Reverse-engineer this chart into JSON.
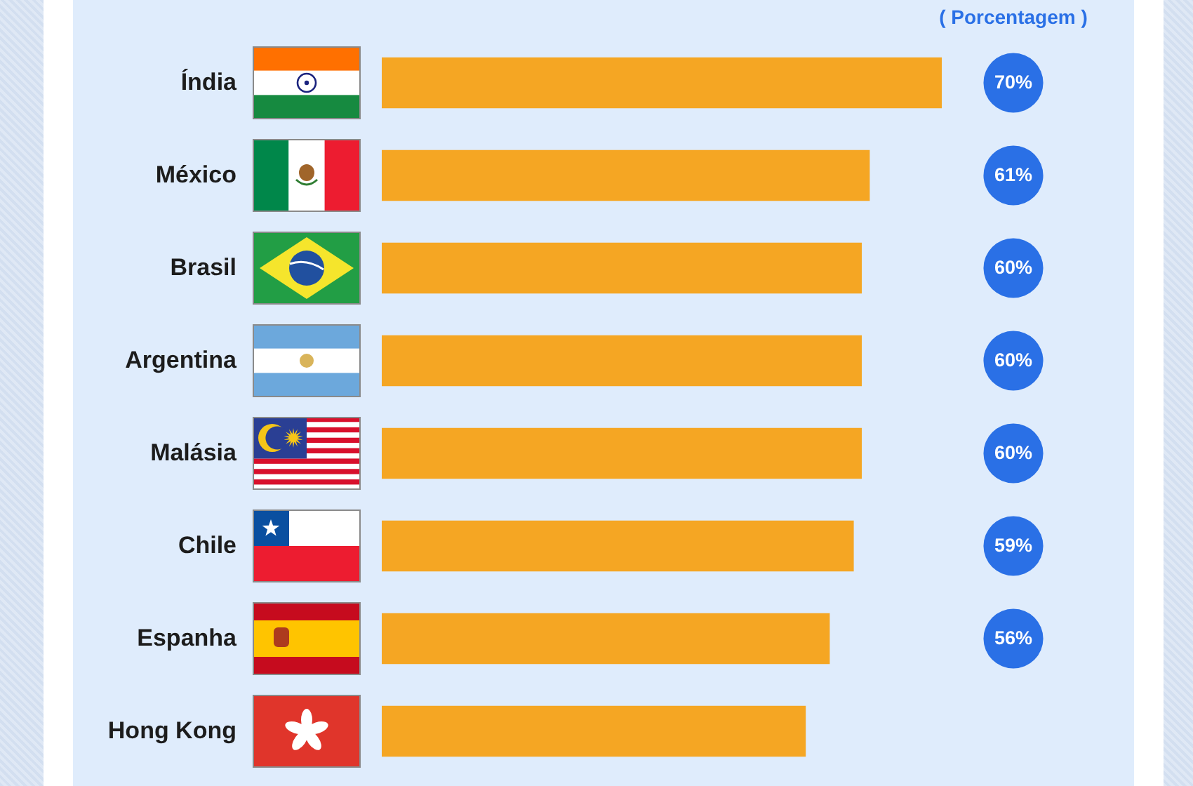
{
  "chart_data": {
    "type": "bar",
    "orientation": "horizontal",
    "categories": [
      "Índia",
      "México",
      "Brasil",
      "Argentina",
      "Malásia",
      "Chile",
      "Espanha",
      "Hong Kong"
    ],
    "values": [
      70,
      61,
      60,
      60,
      60,
      59,
      56,
      53
    ],
    "color": "#f5a623",
    "value_labels": [
      "70%",
      "61%",
      "60%",
      "60%",
      "60%",
      "59%",
      "56%",
      null
    ],
    "annotations": [
      "( Porcentagem )"
    ],
    "tick_labels": "y"
  }
}
